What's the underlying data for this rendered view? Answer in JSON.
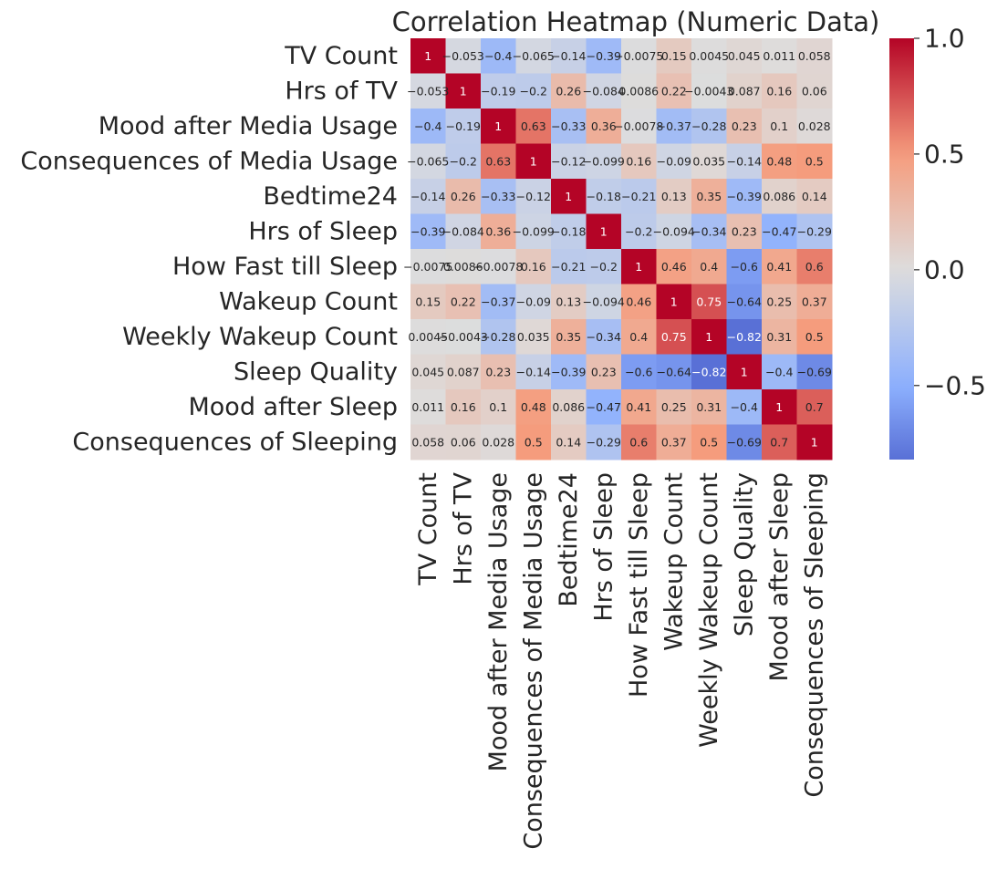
{
  "chart_data": {
    "type": "heatmap",
    "title": "Correlation Heatmap (Numeric Data)",
    "colormap": "coolwarm",
    "annotated": true,
    "x_labels": [
      "TV Count",
      "Hrs of TV",
      "Mood after Media Usage",
      "Consequences of Media Usage",
      "Bedtime24",
      "Hrs of Sleep",
      "How Fast till Sleep",
      "Wakeup Count",
      "Weekly Wakeup Count",
      "Sleep Quality",
      "Mood after Sleep",
      "Consequences of Sleeping"
    ],
    "y_labels": [
      "TV Count",
      "Hrs of TV",
      "Mood after Media Usage",
      "Consequences of Media Usage",
      "Bedtime24",
      "Hrs of Sleep",
      "How Fast till Sleep",
      "Wakeup Count",
      "Weekly Wakeup Count",
      "Sleep Quality",
      "Mood after Sleep",
      "Consequences of Sleeping"
    ],
    "matrix": [
      [
        1,
        -0.053,
        -0.4,
        -0.065,
        -0.14,
        -0.39,
        -0.0075,
        0.15,
        0.0045,
        0.045,
        0.011,
        0.058
      ],
      [
        -0.053,
        1,
        -0.19,
        -0.2,
        0.26,
        -0.084,
        0.0086,
        0.22,
        -0.0043,
        0.087,
        0.16,
        0.06
      ],
      [
        -0.4,
        -0.19,
        1,
        0.63,
        -0.33,
        0.36,
        -0.0078,
        -0.37,
        -0.28,
        0.23,
        0.1,
        0.028
      ],
      [
        -0.065,
        -0.2,
        0.63,
        1,
        -0.12,
        -0.099,
        0.16,
        -0.09,
        0.035,
        -0.14,
        0.48,
        0.5
      ],
      [
        -0.14,
        0.26,
        -0.33,
        -0.12,
        1,
        -0.18,
        -0.21,
        0.13,
        0.35,
        -0.39,
        0.086,
        0.14
      ],
      [
        -0.39,
        -0.084,
        0.36,
        -0.099,
        -0.18,
        1,
        -0.2,
        -0.094,
        -0.34,
        0.23,
        -0.47,
        -0.29
      ],
      [
        -0.0075,
        0.0086,
        -0.0078,
        0.16,
        -0.21,
        -0.2,
        1,
        0.46,
        0.4,
        -0.6,
        0.41,
        0.6
      ],
      [
        0.15,
        0.22,
        -0.37,
        -0.09,
        0.13,
        -0.094,
        0.46,
        1,
        0.75,
        -0.64,
        0.25,
        0.37
      ],
      [
        0.0045,
        -0.0043,
        -0.28,
        0.035,
        0.35,
        -0.34,
        0.4,
        0.75,
        1,
        -0.82,
        0.31,
        0.5
      ],
      [
        0.045,
        0.087,
        0.23,
        -0.14,
        -0.39,
        0.23,
        -0.6,
        -0.64,
        -0.82,
        1,
        -0.4,
        -0.69
      ],
      [
        0.011,
        0.16,
        0.1,
        0.48,
        0.086,
        -0.47,
        0.41,
        0.25,
        0.31,
        -0.4,
        1,
        0.7
      ],
      [
        0.058,
        0.06,
        0.028,
        0.5,
        0.14,
        -0.29,
        0.6,
        0.37,
        0.5,
        -0.69,
        0.7,
        1
      ]
    ],
    "colorbar": {
      "range": [
        -0.82,
        1.0
      ],
      "ticks": [
        -0.5,
        0.0,
        0.5,
        1.0
      ],
      "tick_labels": [
        "−0.5",
        "0.0",
        "0.5",
        "1.0"
      ]
    }
  }
}
